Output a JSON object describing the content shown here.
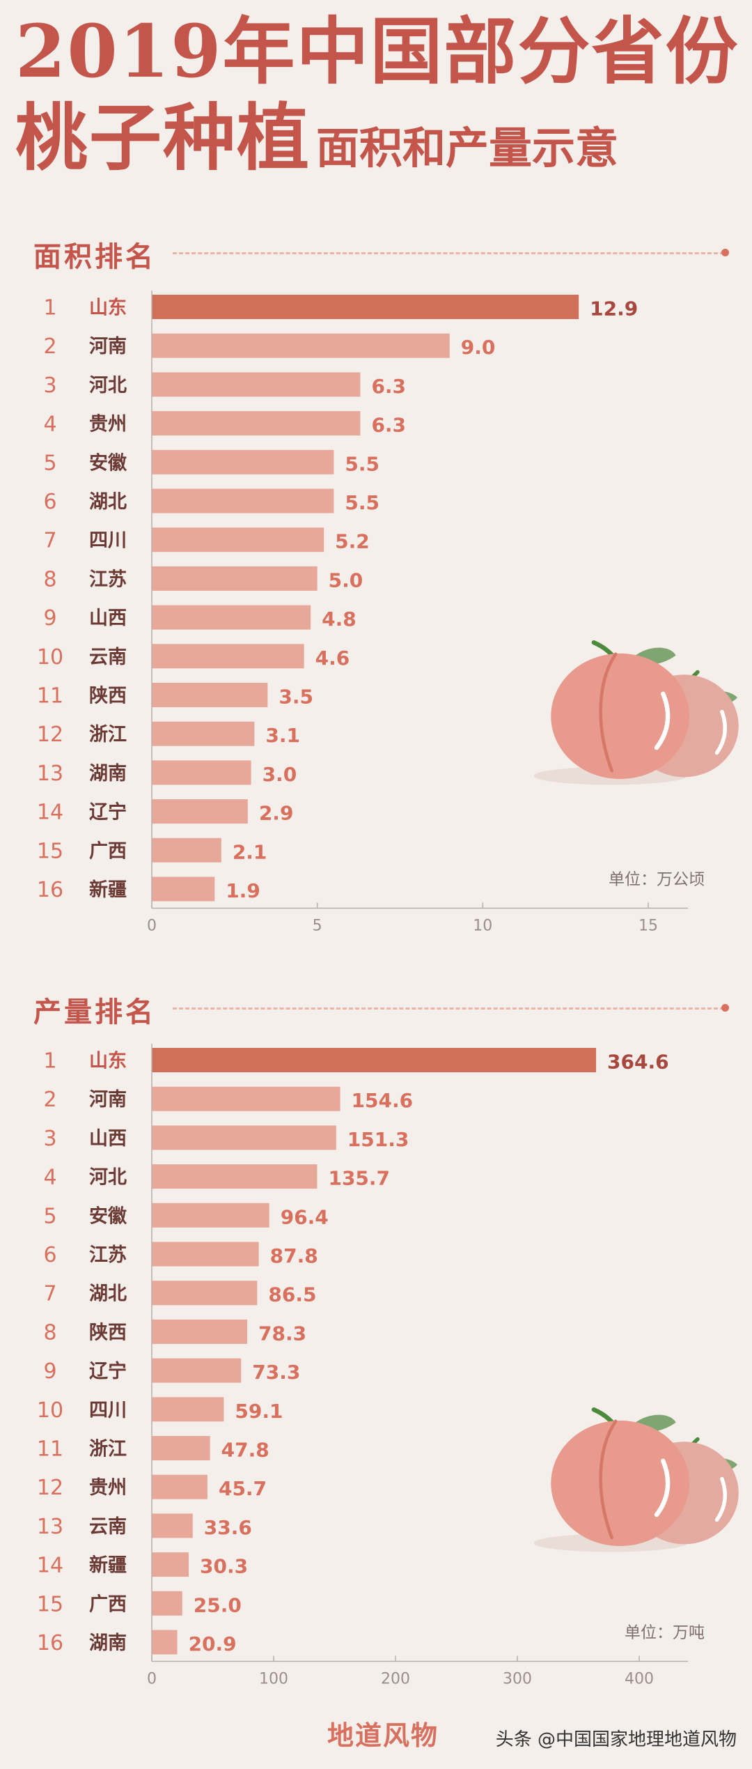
{
  "header": {
    "title_line1": "2019年中国部分省份",
    "title_line2_big": "桃子种植",
    "title_line2_small": "面积和产量示意"
  },
  "chart_data": [
    {
      "type": "bar",
      "orientation": "horizontal",
      "section_title": "面积排名",
      "unit": "单位：万公顷",
      "ranks": [
        "1",
        "2",
        "3",
        "4",
        "5",
        "6",
        "7",
        "8",
        "9",
        "10",
        "11",
        "12",
        "13",
        "14",
        "15",
        "16"
      ],
      "categories": [
        "山东",
        "河南",
        "河北",
        "贵州",
        "安徽",
        "湖北",
        "四川",
        "江苏",
        "山西",
        "云南",
        "陕西",
        "浙江",
        "湖南",
        "辽宁",
        "广西",
        "新疆"
      ],
      "values": [
        12.9,
        9.0,
        6.3,
        6.3,
        5.5,
        5.5,
        5.2,
        5.0,
        4.8,
        4.6,
        3.5,
        3.1,
        3.0,
        2.9,
        2.1,
        1.9
      ],
      "value_labels": [
        "12.9",
        "9.0",
        "6.3",
        "6.3",
        "5.5",
        "5.5",
        "5.2",
        "5.0",
        "4.8",
        "4.6",
        "3.5",
        "3.1",
        "3.0",
        "2.9",
        "2.1",
        "1.9"
      ],
      "xlim": [
        0,
        16.2
      ],
      "xticks": [
        0,
        5,
        10,
        15
      ],
      "xtick_labels": [
        "0",
        "5",
        "10",
        "15"
      ],
      "grid": false,
      "highlight_color": "#d0705a",
      "bar_color": "#e8a899"
    },
    {
      "type": "bar",
      "orientation": "horizontal",
      "section_title": "产量排名",
      "unit": "单位：万吨",
      "ranks": [
        "1",
        "2",
        "3",
        "4",
        "5",
        "6",
        "7",
        "8",
        "9",
        "10",
        "11",
        "12",
        "13",
        "14",
        "15",
        "16"
      ],
      "categories": [
        "山东",
        "河南",
        "山西",
        "河北",
        "安徽",
        "江苏",
        "湖北",
        "陕西",
        "辽宁",
        "四川",
        "浙江",
        "贵州",
        "云南",
        "新疆",
        "广西",
        "湖南"
      ],
      "values": [
        364.6,
        154.6,
        151.3,
        135.7,
        96.4,
        87.8,
        86.5,
        78.3,
        73.3,
        59.1,
        47.8,
        45.7,
        33.6,
        30.3,
        25.0,
        20.9
      ],
      "value_labels": [
        "364.6",
        "154.6",
        "151.3",
        "135.7",
        "96.4",
        "87.8",
        "86.5",
        "78.3",
        "73.3",
        "59.1",
        "47.8",
        "45.7",
        "33.6",
        "30.3",
        "25.0",
        "20.9"
      ],
      "xlim": [
        0,
        440
      ],
      "xticks": [
        0,
        100,
        200,
        300,
        400
      ],
      "xtick_labels": [
        "0",
        "100",
        "200",
        "300",
        "400"
      ],
      "grid": false,
      "highlight_color": "#d0705a",
      "bar_color": "#e8a899"
    }
  ],
  "footer": {
    "brand": "地道风物",
    "credit": "头条 @中国国家地理地道风物"
  }
}
